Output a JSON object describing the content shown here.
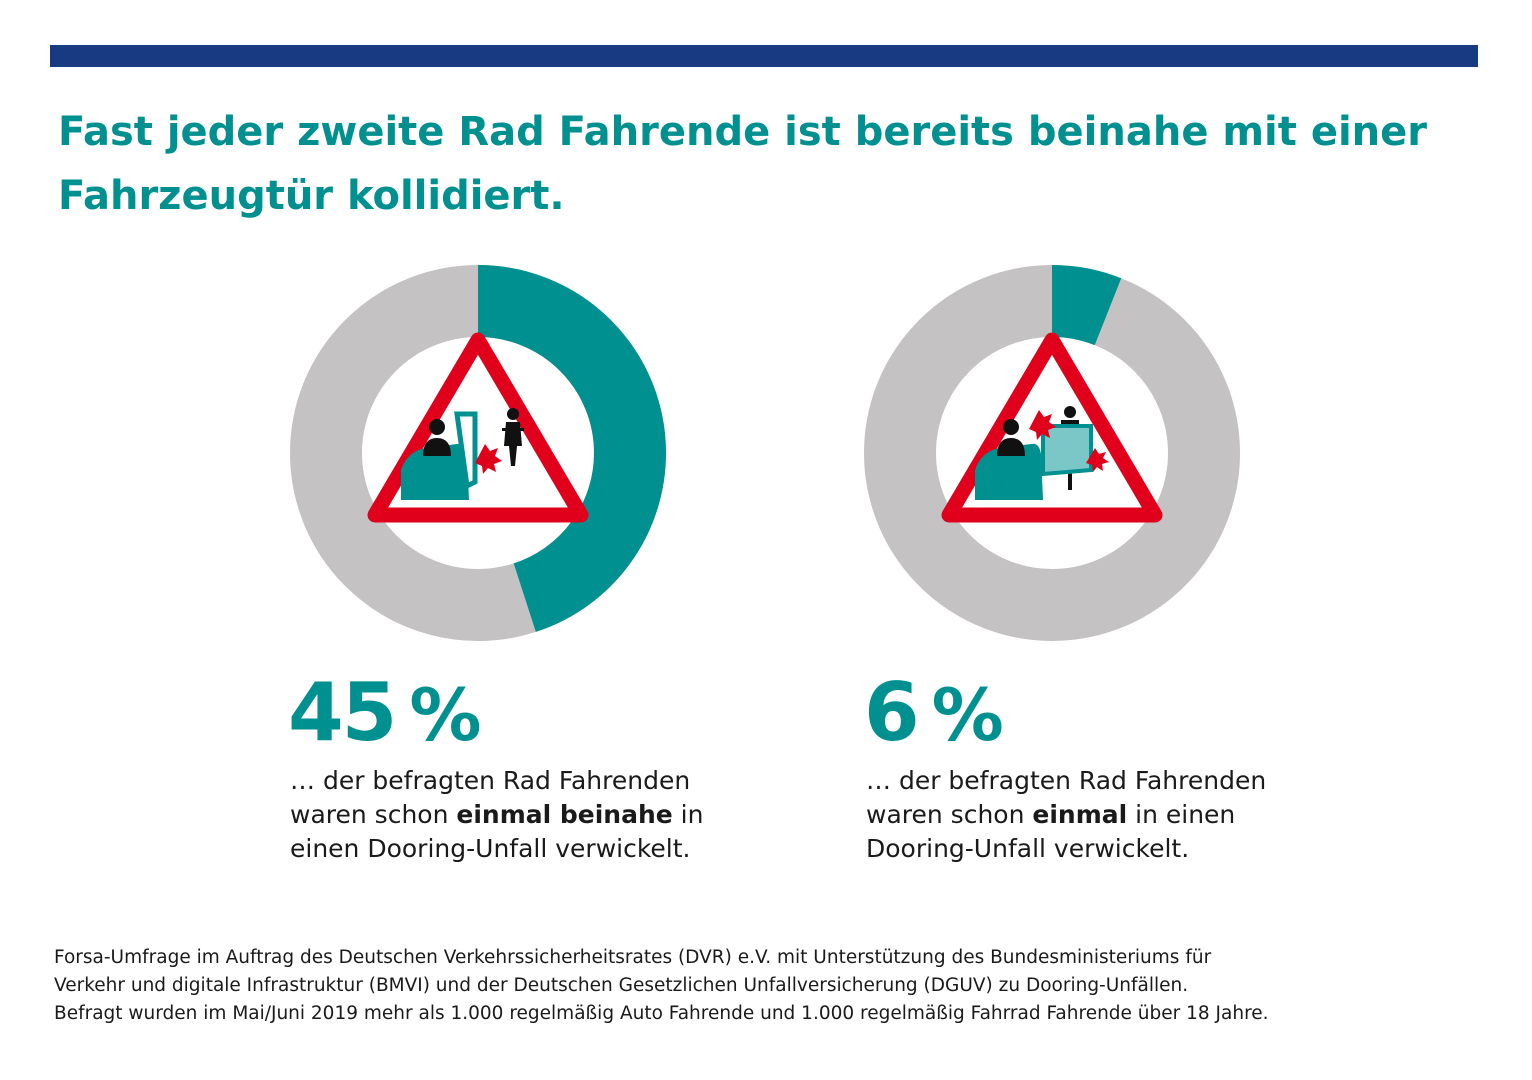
{
  "headline": {
    "line1": "Fast jeder zweite Rad Fahrende ist bereits beinahe mit einer",
    "line2": "Fahrzeugtür kollidiert."
  },
  "colors": {
    "accent": "#009090",
    "ring_rest": "#c4c2c3",
    "bar": "#173a82",
    "warning_red": "#e0001b"
  },
  "chart_data": [
    {
      "type": "pie",
      "values": [
        45,
        55
      ],
      "value_label": "45",
      "unit": "%",
      "description": {
        "pre": "… der befragten Rad Fahrenden waren schon ",
        "bold": "einmal beinahe",
        "post": " in einen Dooring-Unfall verwickelt."
      },
      "icon": "near-miss-dooring-warning-icon"
    },
    {
      "type": "pie",
      "values": [
        6,
        94
      ],
      "value_label": "6",
      "unit": "%",
      "description": {
        "pre": "… der befragten Rad Fahrenden waren schon ",
        "bold": "einmal",
        "post": " in einen Dooring-Unfall verwickelt."
      },
      "icon": "dooring-collision-warning-icon"
    }
  ],
  "source": {
    "line1": "Forsa-Umfrage im Auftrag des Deutschen Verkehrssicherheitsrates (DVR) e.V. mit Unterstützung des Bundesministeriums für",
    "line2": "Verkehr und digitale Infrastruktur (BMVI) und der Deutschen Gesetzlichen Unfallversicherung (DGUV) zu Dooring-Unfällen.",
    "line3": "Befragt wurden im Mai/Juni 2019 mehr als 1.000 regelmäßig Auto Fahrende und 1.000 regelmäßig Fahrrad Fahrende über 18 Jahre."
  }
}
